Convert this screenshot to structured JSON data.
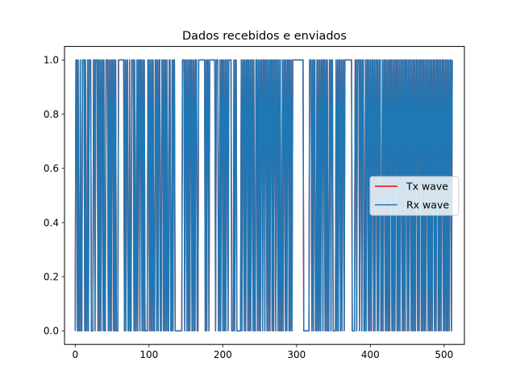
{
  "chart_data": {
    "type": "line",
    "title": "Dados recebidos e enviados",
    "xlabel": "",
    "ylabel": "",
    "xlim": [
      -14.5,
      527.5
    ],
    "ylim": [
      -0.05,
      1.05
    ],
    "xticks": [
      0,
      100,
      200,
      300,
      400,
      500
    ],
    "yticks": [
      0.0,
      0.2,
      0.4,
      0.6,
      0.8,
      1.0
    ],
    "xtick_labels": [
      "0",
      "100",
      "200",
      "300",
      "400",
      "500"
    ],
    "ytick_labels": [
      "0.0",
      "0.2",
      "0.4",
      "0.6",
      "0.8",
      "1.0"
    ],
    "grid": false,
    "legend_position": "center-right",
    "series": [
      {
        "name": "Tx wave",
        "color": "#ff0000",
        "x_range": [
          0,
          511
        ],
        "values": [
          0,
          1,
          1,
          0,
          1,
          0,
          0,
          1,
          0,
          0,
          1,
          1,
          1,
          0,
          1,
          0,
          0,
          1,
          0,
          1,
          1,
          1,
          0,
          0,
          0,
          1,
          1,
          0,
          1,
          1,
          1,
          0,
          1,
          0,
          1,
          0,
          1,
          1,
          0,
          1,
          0,
          0,
          1,
          1,
          1,
          0,
          1,
          0,
          1,
          0,
          1,
          1,
          0,
          1,
          0,
          1,
          0,
          0,
          0,
          1,
          1,
          1,
          1,
          1,
          1,
          1,
          1,
          0,
          1,
          0,
          1,
          1,
          0,
          0,
          1,
          0,
          0,
          1,
          1,
          1,
          0,
          1,
          0,
          0,
          1,
          0,
          1,
          1,
          0,
          1,
          1,
          0,
          1,
          0,
          1,
          0,
          0,
          0,
          0,
          1,
          1,
          0,
          1,
          0,
          1,
          0,
          1,
          0,
          0,
          1,
          1,
          0,
          1,
          0,
          1,
          1,
          0,
          0,
          1,
          1,
          0,
          1,
          0,
          1,
          0,
          1,
          0,
          0,
          1,
          1,
          0,
          0,
          1,
          0,
          1,
          1,
          0,
          0,
          0,
          0,
          0,
          0,
          0,
          0,
          0,
          0,
          1,
          1,
          1,
          0,
          1,
          1,
          0,
          1,
          0,
          1,
          0,
          1,
          1,
          0,
          1,
          0,
          1,
          0,
          1,
          1,
          0,
          0,
          1,
          1,
          1,
          1,
          1,
          1,
          1,
          1,
          1,
          0,
          1,
          0,
          1,
          1,
          0,
          1,
          1,
          1,
          1,
          1,
          1,
          1,
          1,
          0,
          1,
          1,
          1,
          0,
          0,
          1,
          0,
          1,
          1,
          0,
          1,
          0,
          1,
          0,
          1,
          1,
          0,
          1,
          1,
          1,
          1,
          0,
          0,
          0,
          1,
          0,
          1,
          1,
          0,
          0,
          0,
          0,
          0,
          0,
          1,
          0,
          1,
          1,
          0,
          1,
          0,
          1,
          1,
          0,
          1,
          0,
          1,
          0,
          1,
          1,
          0,
          1,
          0,
          0,
          1,
          1,
          0,
          1,
          0,
          1,
          0,
          1,
          1,
          0,
          1,
          1,
          0,
          1,
          1,
          0,
          1,
          0,
          1,
          0,
          1,
          1,
          0,
          1,
          0,
          1,
          1,
          0,
          1,
          1,
          0,
          1,
          0,
          1,
          0,
          0,
          1,
          0,
          1,
          1,
          0,
          1,
          0,
          1,
          1,
          0,
          1,
          0,
          1,
          0,
          1,
          1,
          1,
          1,
          1,
          1,
          1,
          1,
          1,
          1,
          1,
          1,
          1,
          1,
          1,
          0,
          0,
          0,
          0,
          0,
          0,
          0,
          0,
          1,
          1,
          1,
          0,
          1,
          0,
          1,
          1,
          0,
          0,
          1,
          0,
          1,
          0,
          1,
          0,
          1,
          1,
          0,
          1,
          1,
          0,
          1,
          0,
          1,
          0,
          0,
          1,
          1,
          0,
          1,
          1,
          0,
          0,
          0,
          0,
          1,
          0,
          1,
          0,
          1,
          1,
          0,
          1,
          0,
          1,
          1,
          0,
          1,
          1,
          1,
          1,
          1,
          1,
          1,
          1,
          1,
          1,
          0,
          0,
          0,
          0,
          1,
          1,
          0,
          1,
          1,
          1,
          0,
          1,
          1,
          0,
          1,
          1,
          0,
          0,
          1,
          0,
          1,
          1,
          0,
          1,
          0,
          1,
          0,
          1,
          1,
          0,
          1,
          0,
          1,
          1,
          0,
          1,
          0,
          1,
          1,
          0,
          0,
          1,
          0,
          1,
          1,
          0,
          1,
          0,
          1,
          0,
          1,
          0,
          1,
          1,
          0,
          1,
          0,
          1,
          0,
          1,
          1,
          0,
          1,
          0,
          1,
          0,
          1,
          1,
          0,
          1,
          0,
          1,
          0,
          1,
          1,
          0,
          1,
          0,
          1,
          1,
          0,
          1,
          0,
          1,
          0,
          1,
          0,
          1,
          1,
          0,
          1,
          0,
          1,
          1,
          0,
          1,
          0,
          1,
          0,
          1,
          0,
          1,
          1,
          0,
          1,
          0,
          1,
          0,
          1,
          0,
          1,
          1,
          0,
          1,
          0,
          1,
          1,
          0,
          1,
          0,
          1,
          0,
          1,
          1,
          0,
          1,
          0,
          1,
          0,
          1,
          0,
          1,
          0,
          1,
          1,
          0,
          1
        ]
      },
      {
        "name": "Rx wave",
        "color": "#1f77b4",
        "x_range": [
          0,
          511
        ],
        "values": [
          0,
          1,
          1,
          0,
          1,
          0,
          0,
          1,
          0,
          0,
          1,
          1,
          1,
          0,
          1,
          0,
          0,
          1,
          0,
          1,
          1,
          1,
          0,
          0,
          0,
          1,
          1,
          0,
          1,
          1,
          1,
          0,
          1,
          0,
          1,
          0,
          1,
          1,
          0,
          1,
          0,
          0,
          1,
          1,
          1,
          0,
          1,
          0,
          1,
          0,
          1,
          1,
          0,
          1,
          0,
          1,
          0,
          0,
          0,
          1,
          1,
          1,
          1,
          1,
          1,
          1,
          1,
          0,
          1,
          0,
          1,
          1,
          0,
          0,
          1,
          0,
          0,
          1,
          1,
          1,
          0,
          1,
          0,
          0,
          1,
          0,
          1,
          1,
          0,
          1,
          1,
          0,
          1,
          0,
          1,
          0,
          0,
          0,
          0,
          1,
          1,
          0,
          1,
          0,
          1,
          0,
          1,
          0,
          0,
          1,
          1,
          0,
          1,
          0,
          1,
          1,
          0,
          0,
          1,
          1,
          0,
          1,
          0,
          1,
          0,
          1,
          0,
          0,
          1,
          1,
          0,
          0,
          1,
          0,
          1,
          1,
          0,
          0,
          0,
          0,
          0,
          0,
          0,
          0,
          0,
          0,
          1,
          1,
          1,
          0,
          1,
          1,
          0,
          1,
          0,
          1,
          0,
          1,
          1,
          0,
          1,
          0,
          1,
          0,
          1,
          1,
          0,
          0,
          1,
          1,
          1,
          1,
          1,
          1,
          1,
          1,
          1,
          0,
          1,
          0,
          1,
          1,
          0,
          1,
          1,
          1,
          1,
          1,
          1,
          1,
          1,
          0,
          1,
          1,
          1,
          0,
          0,
          1,
          0,
          1,
          1,
          0,
          1,
          0,
          1,
          0,
          1,
          1,
          0,
          1,
          1,
          1,
          1,
          0,
          0,
          0,
          1,
          0,
          1,
          1,
          0,
          0,
          0,
          0,
          0,
          0,
          1,
          0,
          1,
          1,
          0,
          1,
          0,
          1,
          1,
          0,
          1,
          0,
          1,
          0,
          1,
          1,
          0,
          1,
          0,
          0,
          1,
          1,
          0,
          1,
          0,
          1,
          0,
          1,
          1,
          0,
          1,
          1,
          0,
          1,
          1,
          0,
          1,
          0,
          1,
          0,
          1,
          1,
          0,
          1,
          0,
          1,
          1,
          0,
          1,
          1,
          0,
          1,
          0,
          1,
          0,
          0,
          1,
          0,
          1,
          1,
          0,
          1,
          0,
          1,
          1,
          0,
          1,
          0,
          1,
          0,
          1,
          1,
          1,
          1,
          1,
          1,
          1,
          1,
          1,
          1,
          1,
          1,
          1,
          1,
          1,
          0,
          0,
          0,
          0,
          0,
          0,
          0,
          0,
          1,
          1,
          1,
          0,
          1,
          0,
          1,
          1,
          0,
          0,
          1,
          0,
          1,
          0,
          1,
          0,
          1,
          1,
          0,
          1,
          1,
          0,
          1,
          0,
          1,
          0,
          0,
          1,
          1,
          0,
          1,
          1,
          0,
          0,
          0,
          0,
          1,
          0,
          1,
          0,
          1,
          1,
          0,
          1,
          0,
          1,
          1,
          0,
          1,
          1,
          1,
          1,
          1,
          1,
          1,
          1,
          1,
          1,
          0,
          0,
          0,
          0,
          1,
          1,
          0,
          1,
          1,
          1,
          0,
          1,
          1,
          0,
          1,
          1,
          0,
          0,
          1,
          0,
          1,
          1,
          0,
          1,
          0,
          1,
          0,
          1,
          1,
          0,
          1,
          0,
          1,
          1,
          0,
          1,
          0,
          1,
          1,
          0,
          0,
          1,
          0,
          1,
          1,
          0,
          1,
          0,
          1,
          0,
          1,
          0,
          1,
          1,
          0,
          1,
          0,
          1,
          0,
          1,
          1,
          0,
          1,
          0,
          1,
          0,
          1,
          1,
          0,
          1,
          0,
          1,
          0,
          1,
          1,
          0,
          1,
          0,
          1,
          1,
          0,
          1,
          0,
          1,
          0,
          1,
          0,
          1,
          1,
          0,
          1,
          0,
          1,
          1,
          0,
          1,
          0,
          1,
          0,
          1,
          0,
          1,
          1,
          0,
          1,
          0,
          1,
          0,
          1,
          0,
          1,
          1,
          0,
          1,
          0,
          1,
          1,
          0,
          1,
          0,
          1,
          0,
          1,
          1,
          0,
          1,
          0,
          1,
          0,
          1,
          0,
          1,
          0,
          1,
          1,
          0,
          1
        ]
      }
    ]
  }
}
